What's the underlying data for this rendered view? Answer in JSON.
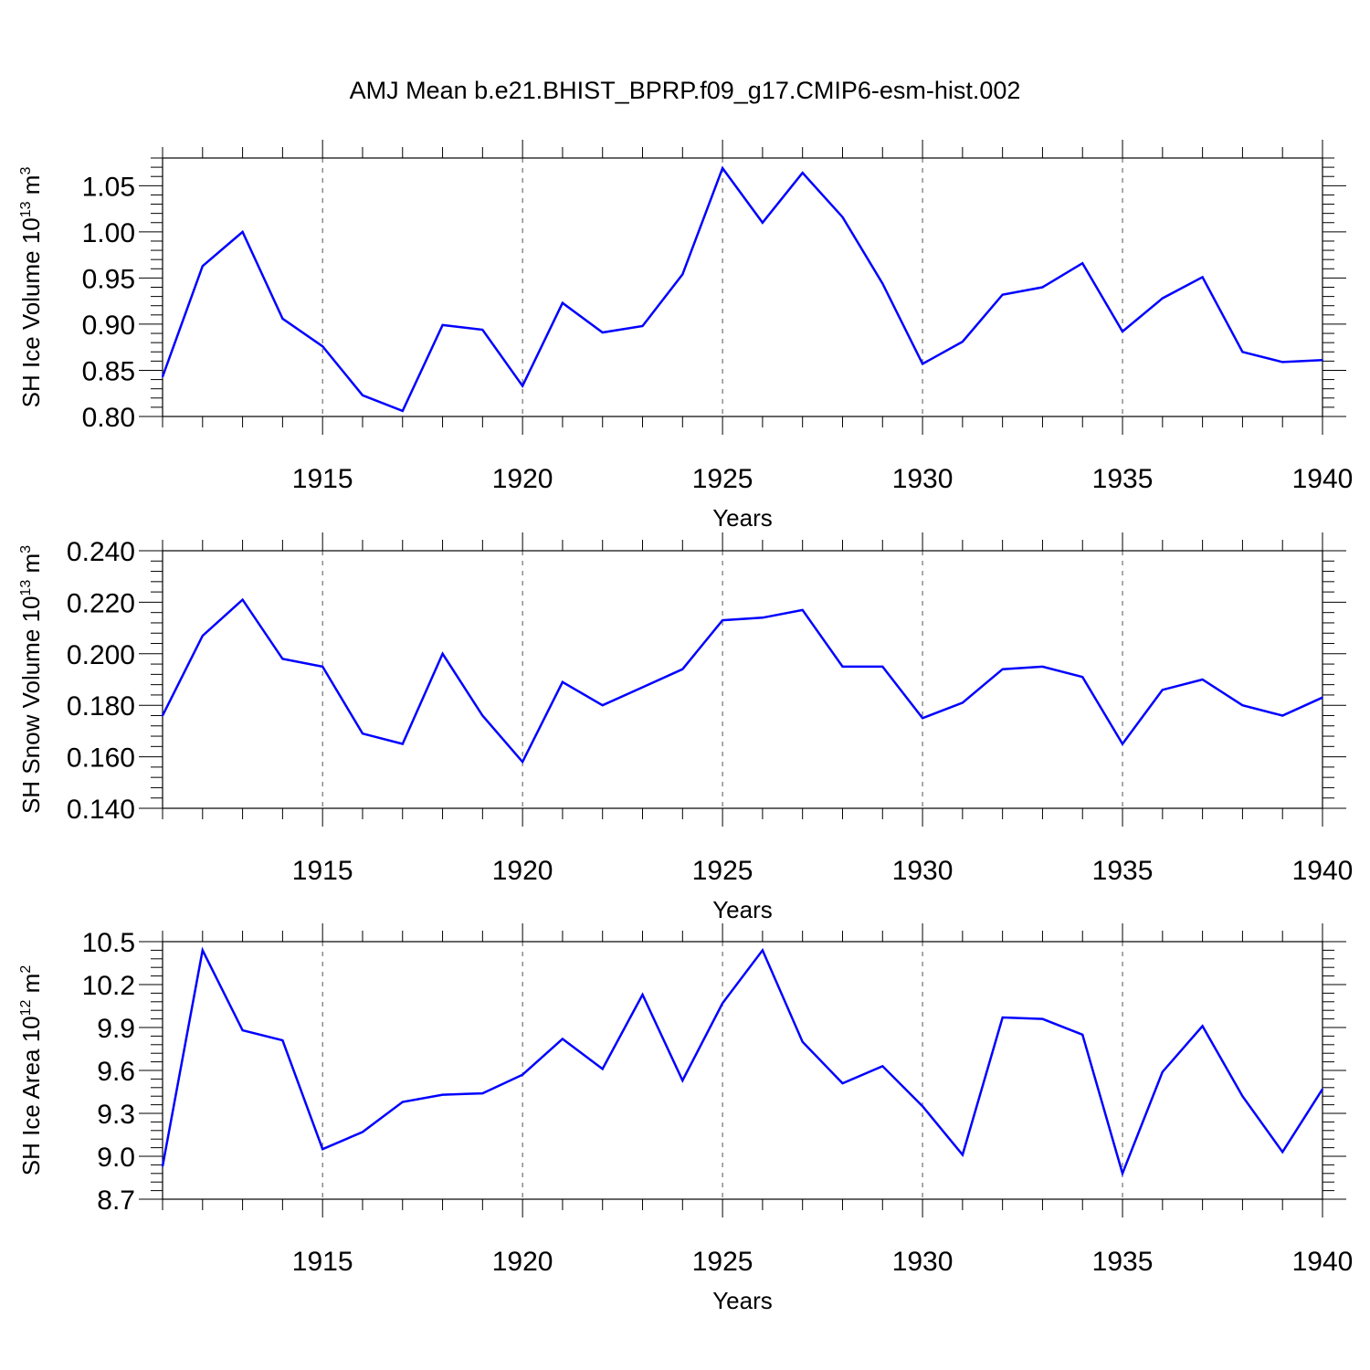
{
  "title": "AMJ Mean b.e21.BHIST_BPRP.f09_g17.CMIP6-esm-hist.002",
  "line_color": "#0000ff",
  "chart_data": [
    {
      "type": "line",
      "ylabel": "SH Ice Volume 10^13 m^3",
      "ylabel_parts": {
        "base": "SH Ice Volume 10",
        "exp1": "13",
        "mid": " m",
        "exp2": "3"
      },
      "xlabel": "Years",
      "xlim": [
        1911,
        1940
      ],
      "ylim": [
        0.8,
        1.08
      ],
      "x_ticks": [
        1915,
        1920,
        1925,
        1930,
        1935,
        1940
      ],
      "x_tick_labels": [
        "1915",
        "1920",
        "1925",
        "1930",
        "1935",
        "1940"
      ],
      "y_ticks": [
        0.8,
        0.85,
        0.9,
        0.95,
        1.0,
        1.05
      ],
      "y_tick_labels": [
        "0.80",
        "0.85",
        "0.90",
        "0.95",
        "1.00",
        "1.05"
      ],
      "x_grid": true,
      "series": [
        {
          "x": [
            1911,
            1912,
            1913,
            1914,
            1915,
            1916,
            1917,
            1918,
            1919,
            1920,
            1921,
            1922,
            1923,
            1924,
            1925,
            1926,
            1927,
            1928,
            1929,
            1930,
            1931,
            1932,
            1933,
            1934,
            1935,
            1936,
            1937,
            1938,
            1939,
            1940
          ],
          "values": [
            0.843,
            0.963,
            1.0,
            0.906,
            0.876,
            0.823,
            0.806,
            0.899,
            0.894,
            0.833,
            0.923,
            0.891,
            0.898,
            0.954,
            1.069,
            1.01,
            1.064,
            1.016,
            0.944,
            0.857,
            0.881,
            0.932,
            0.94,
            0.966,
            0.892,
            0.928,
            0.951,
            0.87,
            0.859,
            0.861
          ]
        }
      ]
    },
    {
      "type": "line",
      "ylabel": "SH Snow Volume 10^13 m^3",
      "ylabel_parts": {
        "base": "SH Snow Volume 10",
        "exp1": "13",
        "mid": " m",
        "exp2": "3"
      },
      "xlabel": "Years",
      "xlim": [
        1911,
        1940
      ],
      "ylim": [
        0.14,
        0.24
      ],
      "x_ticks": [
        1915,
        1920,
        1925,
        1930,
        1935,
        1940
      ],
      "x_tick_labels": [
        "1915",
        "1920",
        "1925",
        "1930",
        "1935",
        "1940"
      ],
      "y_ticks": [
        0.14,
        0.16,
        0.18,
        0.2,
        0.22,
        0.24
      ],
      "y_tick_labels": [
        "0.140",
        "0.160",
        "0.180",
        "0.200",
        "0.220",
        "0.240"
      ],
      "x_grid": true,
      "series": [
        {
          "x": [
            1911,
            1912,
            1913,
            1914,
            1915,
            1916,
            1917,
            1918,
            1919,
            1920,
            1921,
            1922,
            1923,
            1924,
            1925,
            1926,
            1927,
            1928,
            1929,
            1930,
            1931,
            1932,
            1933,
            1934,
            1935,
            1936,
            1937,
            1938,
            1939,
            1940
          ],
          "values": [
            0.176,
            0.207,
            0.221,
            0.198,
            0.195,
            0.169,
            0.165,
            0.2,
            0.176,
            0.158,
            0.189,
            0.18,
            0.187,
            0.194,
            0.213,
            0.214,
            0.217,
            0.195,
            0.195,
            0.175,
            0.181,
            0.194,
            0.195,
            0.191,
            0.165,
            0.186,
            0.19,
            0.18,
            0.176,
            0.183
          ]
        }
      ]
    },
    {
      "type": "line",
      "ylabel": "SH Ice Area 10^12 m^2",
      "ylabel_parts": {
        "base": "SH Ice Area 10",
        "exp1": "12",
        "mid": " m",
        "exp2": "2"
      },
      "xlabel": "Years",
      "xlim": [
        1911,
        1940
      ],
      "ylim": [
        8.7,
        10.5
      ],
      "x_ticks": [
        1915,
        1920,
        1925,
        1930,
        1935,
        1940
      ],
      "x_tick_labels": [
        "1915",
        "1920",
        "1925",
        "1930",
        "1935",
        "1940"
      ],
      "y_ticks": [
        8.7,
        9.0,
        9.3,
        9.6,
        9.9,
        10.2,
        10.5
      ],
      "y_tick_labels": [
        "8.7",
        "9.0",
        "9.3",
        "9.6",
        "9.9",
        "10.2",
        "10.5"
      ],
      "x_grid": true,
      "series": [
        {
          "x": [
            1911,
            1912,
            1913,
            1914,
            1915,
            1916,
            1917,
            1918,
            1919,
            1920,
            1921,
            1922,
            1923,
            1924,
            1925,
            1926,
            1927,
            1928,
            1929,
            1930,
            1931,
            1932,
            1933,
            1934,
            1935,
            1936,
            1937,
            1938,
            1939,
            1940
          ],
          "values": [
            8.93,
            10.44,
            9.88,
            9.81,
            9.05,
            9.17,
            9.38,
            9.43,
            9.44,
            9.57,
            9.82,
            9.61,
            10.13,
            9.53,
            10.07,
            10.44,
            9.8,
            9.51,
            9.63,
            9.35,
            9.01,
            9.97,
            9.96,
            9.85,
            8.88,
            9.59,
            9.91,
            9.42,
            9.03,
            9.47
          ]
        }
      ]
    }
  ]
}
